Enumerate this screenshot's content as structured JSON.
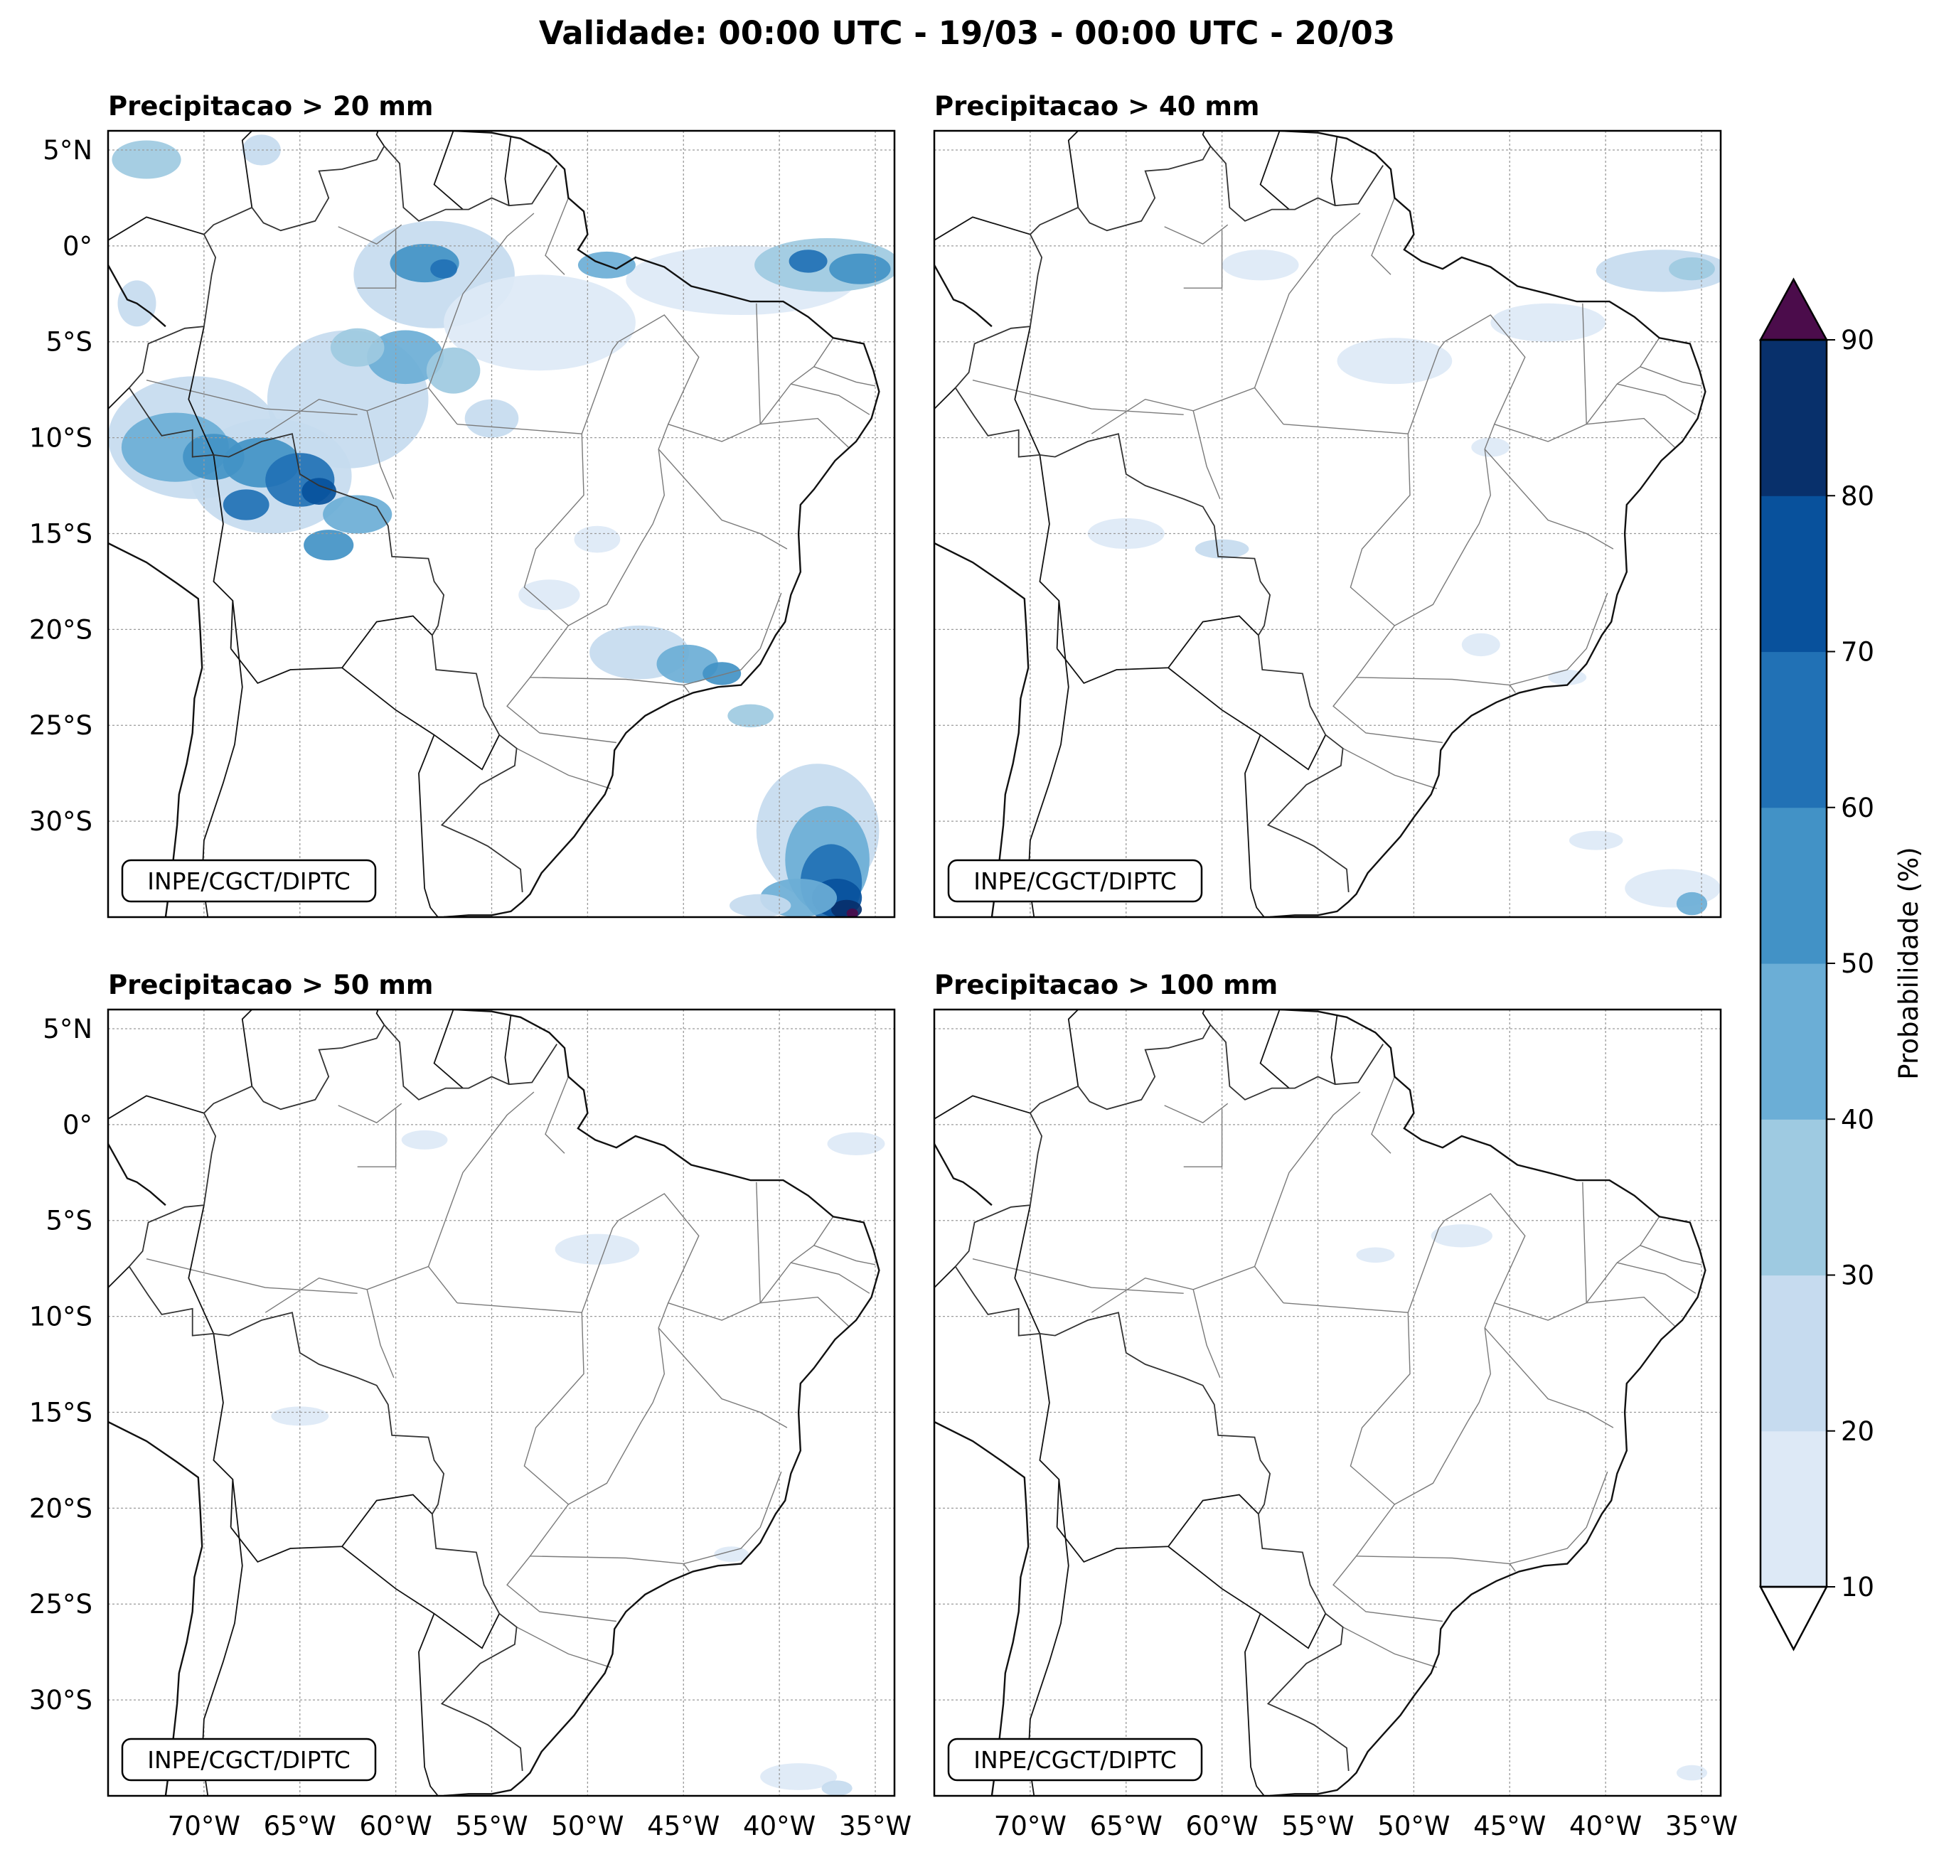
{
  "figure": {
    "title": "Validade: 00:00 UTC - 19/03 - 00:00 UTC - 20/03"
  },
  "panels": [
    {
      "title": "Precipitacao > 20 mm",
      "credit": "INPE/CGCT/DIPTC"
    },
    {
      "title": "Precipitacao > 40 mm",
      "credit": "INPE/CGCT/DIPTC"
    },
    {
      "title": "Precipitacao > 50 mm",
      "credit": "INPE/CGCT/DIPTC"
    },
    {
      "title": "Precipitacao > 100 mm",
      "credit": "INPE/CGCT/DIPTC"
    }
  ],
  "axes": {
    "lat_ticks": [
      "5°N",
      "0°",
      "5°S",
      "10°S",
      "15°S",
      "20°S",
      "25°S",
      "30°S"
    ],
    "lon_ticks": [
      "70°W",
      "65°W",
      "60°W",
      "55°W",
      "50°W",
      "45°W",
      "40°W",
      "35°W"
    ],
    "lat_values": [
      5,
      0,
      -5,
      -10,
      -15,
      -20,
      -25,
      -30
    ],
    "lon_values": [
      -70,
      -65,
      -60,
      -55,
      -50,
      -45,
      -40,
      -35
    ],
    "lat_range": [
      -35,
      6
    ],
    "lon_range": [
      -75,
      -34
    ]
  },
  "colorbar": {
    "label": "Probabilidade (%)",
    "ticks": [
      "10",
      "20",
      "30",
      "40",
      "50",
      "60",
      "70",
      "80",
      "90"
    ],
    "levels": [
      10,
      20,
      30,
      40,
      50,
      60,
      70,
      80,
      90
    ],
    "colors": [
      "#dde9f6",
      "#c6dbef",
      "#9ecae1",
      "#6baed6",
      "#4292c6",
      "#2171b5",
      "#08519c",
      "#08306b"
    ],
    "over_color": "#4b0c4b",
    "under_color": "#ffffff",
    "extend": "both"
  }
}
